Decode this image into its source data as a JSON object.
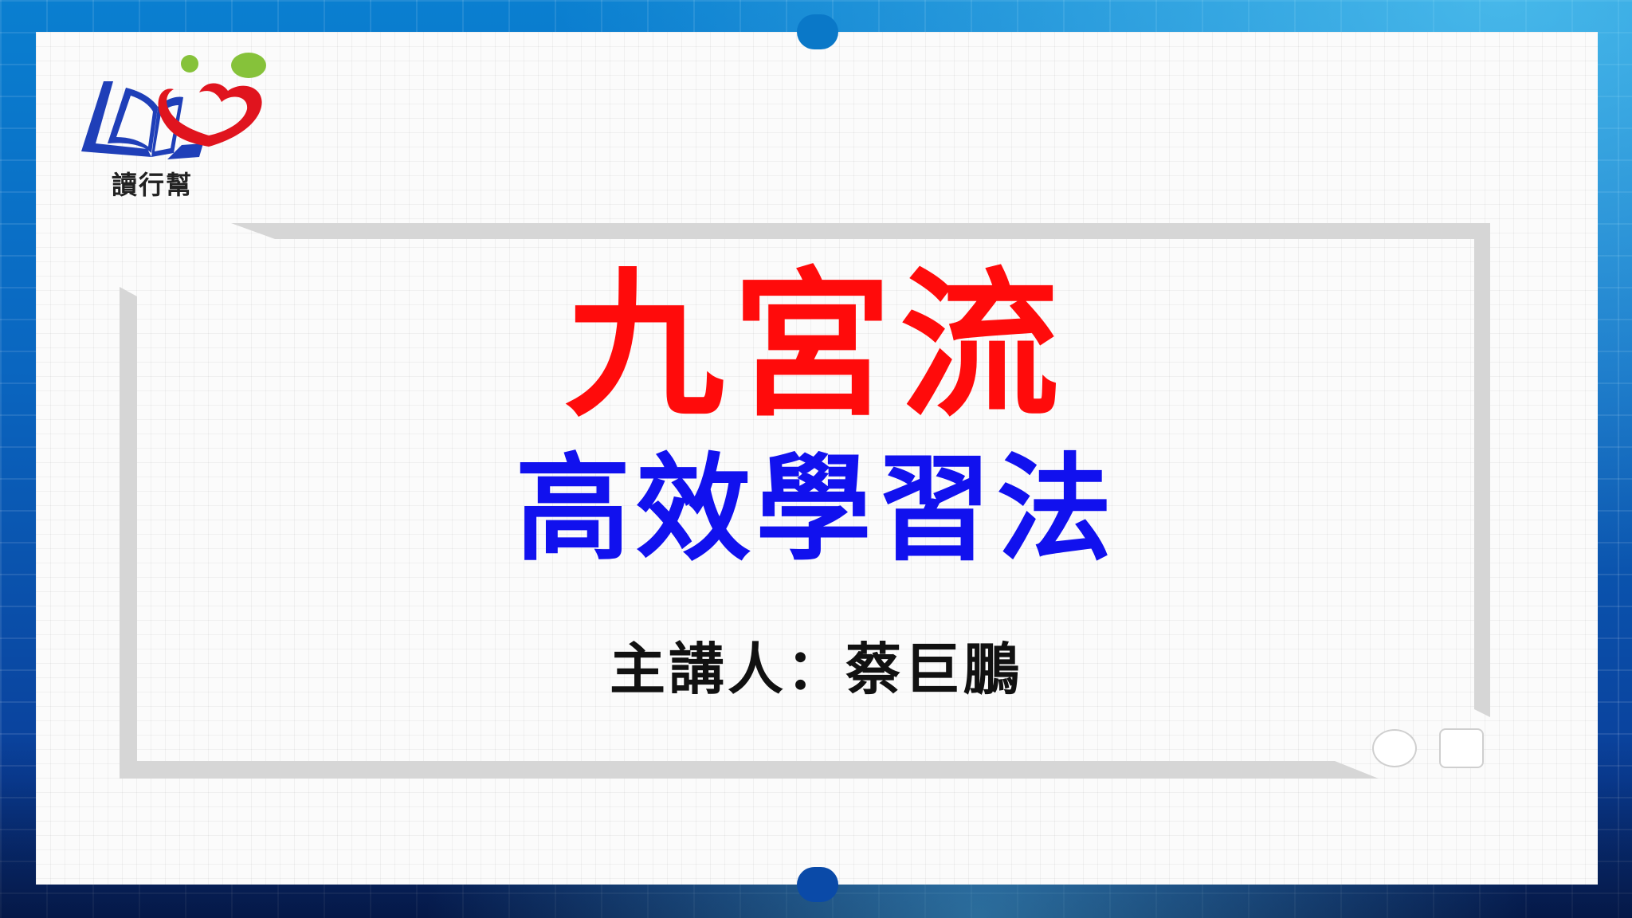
{
  "logo": {
    "text": "讀行幫",
    "colors": {
      "book": "#1f3fb8",
      "heart": "#e0141e",
      "dots": "#86c23a"
    }
  },
  "title": {
    "line1": "九宮流",
    "line2": "高效學習法",
    "line1_color": "#ff0b0b",
    "line2_color": "#1111ee"
  },
  "speaker": {
    "text": "主講人：蔡巨鵬"
  },
  "colors": {
    "border": "#0a6fc6",
    "card": "#fbfbfb",
    "frame": "#d6d6d6"
  }
}
